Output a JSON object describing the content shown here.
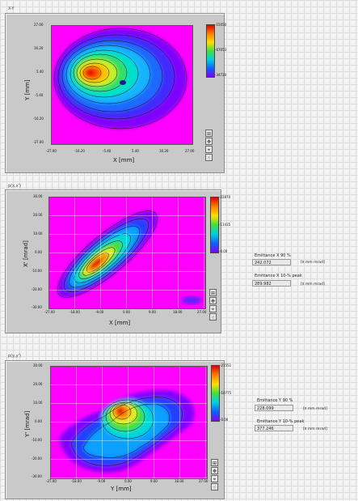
{
  "colors": {
    "background_grid": "#dcdcdc",
    "panel": "#c9c9c9",
    "plot_bg": "#ff00ff"
  },
  "sections": [
    {
      "title": "X-Y",
      "xlabel": "X [mm]",
      "ylabel": "Y [mm]",
      "xticks": [
        "-27.00",
        "-16.20",
        "-5.40",
        "5.40",
        "16.20",
        "27.00"
      ],
      "yticks": [
        "27.00",
        "16.20",
        "5.40",
        "-5.40",
        "-16.20",
        "-27.00"
      ],
      "cbar_ticks": [
        "-15050",
        "-67053",
        "-34720"
      ]
    },
    {
      "title": "p(x,x')",
      "xlabel": "X [mm]",
      "ylabel": "X' [mrad]",
      "xticks": [
        "-27.00",
        "-18.00",
        "-9.00",
        "0.00",
        "9.00",
        "18.00",
        "27.00"
      ],
      "yticks": [
        "30.00",
        "20.00",
        "10.00",
        "0.00",
        "-10.00",
        "-20.00",
        "-30.00"
      ],
      "cbar_ticks": [
        "-22870",
        "-11435",
        "-0.00"
      ],
      "emittance_label": "Emittance X 90 %",
      "emittance_value": "242.072",
      "emittance_unit": "[π mm mrad]",
      "peak_label": "Emittance X 10-% peak",
      "peak_value": "289.982",
      "peak_unit": "[π mm mrad]"
    },
    {
      "title": "p(y,y')",
      "xlabel": "Y [mm]",
      "ylabel": "Y' [mrad]",
      "xticks": [
        "-27.00",
        "-18.00",
        "-9.00",
        "0.00",
        "9.00",
        "18.00",
        "27.00"
      ],
      "yticks": [
        "30.00",
        "20.00",
        "10.00",
        "0.00",
        "-10.00",
        "-20.00",
        "-30.00"
      ],
      "cbar_ticks": [
        "-21551",
        "-10775",
        "-0.00"
      ],
      "emittance_label": "Emittance Y 90 %",
      "emittance_value": "228.099",
      "emittance_unit": "[π mm mrad]",
      "peak_label": "Emittance Y 10-% peak",
      "peak_value": "377.246",
      "peak_unit": "[π mm mrad]"
    }
  ],
  "tools": [
    "zoom-icon",
    "pan-icon",
    "cursor-icon",
    "hand-icon"
  ]
}
